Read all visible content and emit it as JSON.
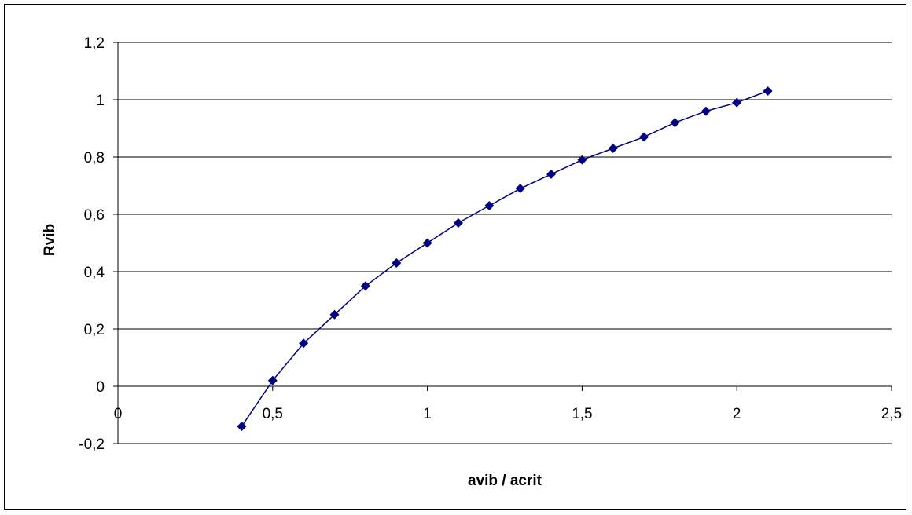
{
  "chart_data": {
    "type": "scatter",
    "title": "",
    "xlabel": "avib / acrit",
    "ylabel": "Rvib",
    "xlim": [
      0,
      2.5
    ],
    "ylim": [
      -0.2,
      1.2
    ],
    "x_ticks": [
      "0",
      "0,5",
      "1",
      "1,5",
      "2",
      "2,5"
    ],
    "y_ticks": [
      "-0,2",
      "0",
      "0,2",
      "0,4",
      "0,6",
      "0,8",
      "1",
      "1,2"
    ],
    "grid": "horizontal",
    "legend": "none",
    "marker": "diamond",
    "connected": true,
    "series": [
      {
        "color": "#000080",
        "x": [
          0.4,
          0.5,
          0.6,
          0.7,
          0.8,
          0.9,
          1.0,
          1.1,
          1.2,
          1.3,
          1.4,
          1.5,
          1.6,
          1.7,
          1.8,
          1.9,
          2.0,
          2.1
        ],
        "y": [
          -0.14,
          0.02,
          0.15,
          0.25,
          0.35,
          0.43,
          0.5,
          0.57,
          0.63,
          0.69,
          0.74,
          0.79,
          0.83,
          0.87,
          0.92,
          0.96,
          0.99,
          1.03
        ]
      }
    ]
  }
}
